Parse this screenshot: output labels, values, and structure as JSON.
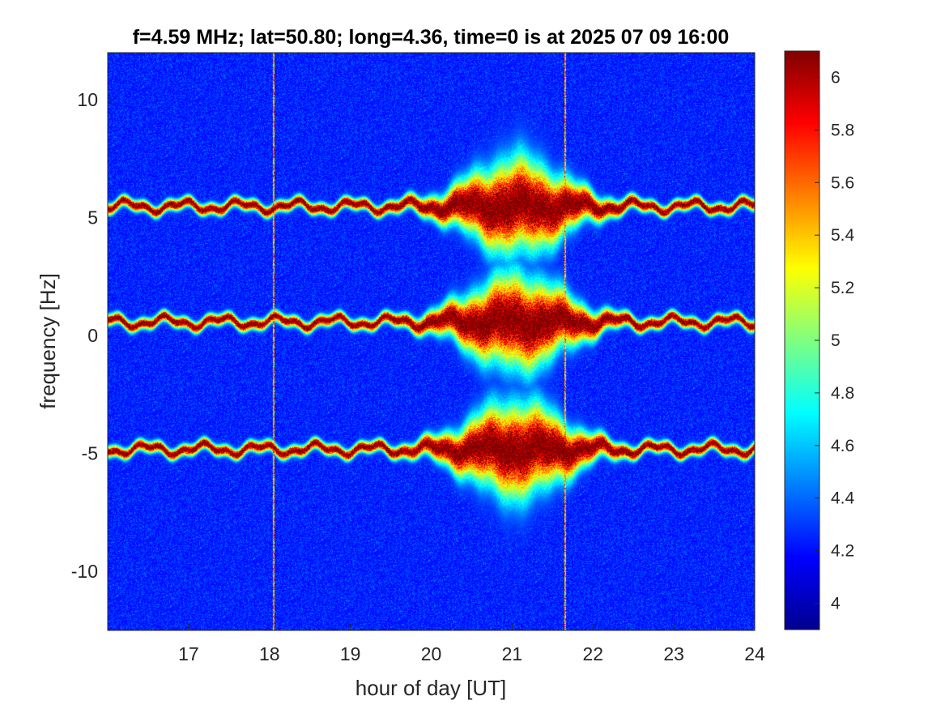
{
  "chart_data": {
    "type": "heatmap",
    "title": "f=4.59 MHz;  lat=50.80; long=4.36, time=0 is at 2025 07 09 16:00",
    "xlabel": "hour of day [UT]",
    "ylabel": "frequency [Hz]",
    "xlim": [
      16,
      24
    ],
    "ylim": [
      -12.5,
      12
    ],
    "x_ticks": [
      17,
      18,
      19,
      20,
      21,
      22,
      23,
      24
    ],
    "y_ticks": [
      -10,
      -5,
      0,
      5,
      10
    ],
    "colormap": "jet",
    "colorbar": {
      "range": [
        3.9,
        6.1
      ],
      "ticks": [
        4,
        4.2,
        4.4,
        4.6,
        4.8,
        5,
        5.2,
        5.4,
        5.6,
        5.8,
        6
      ]
    },
    "background_level": 4.2,
    "bands": [
      {
        "center_hz": 5.5,
        "peak_level": 6.1
      },
      {
        "center_hz": 0.6,
        "peak_level": 6.1
      },
      {
        "center_hz": -4.8,
        "peak_level": 6.1
      }
    ],
    "enhanced_interval_hours": [
      20.3,
      21.8
    ],
    "vertical_lines_hours": [
      18.05,
      21.65
    ],
    "grid": false
  }
}
